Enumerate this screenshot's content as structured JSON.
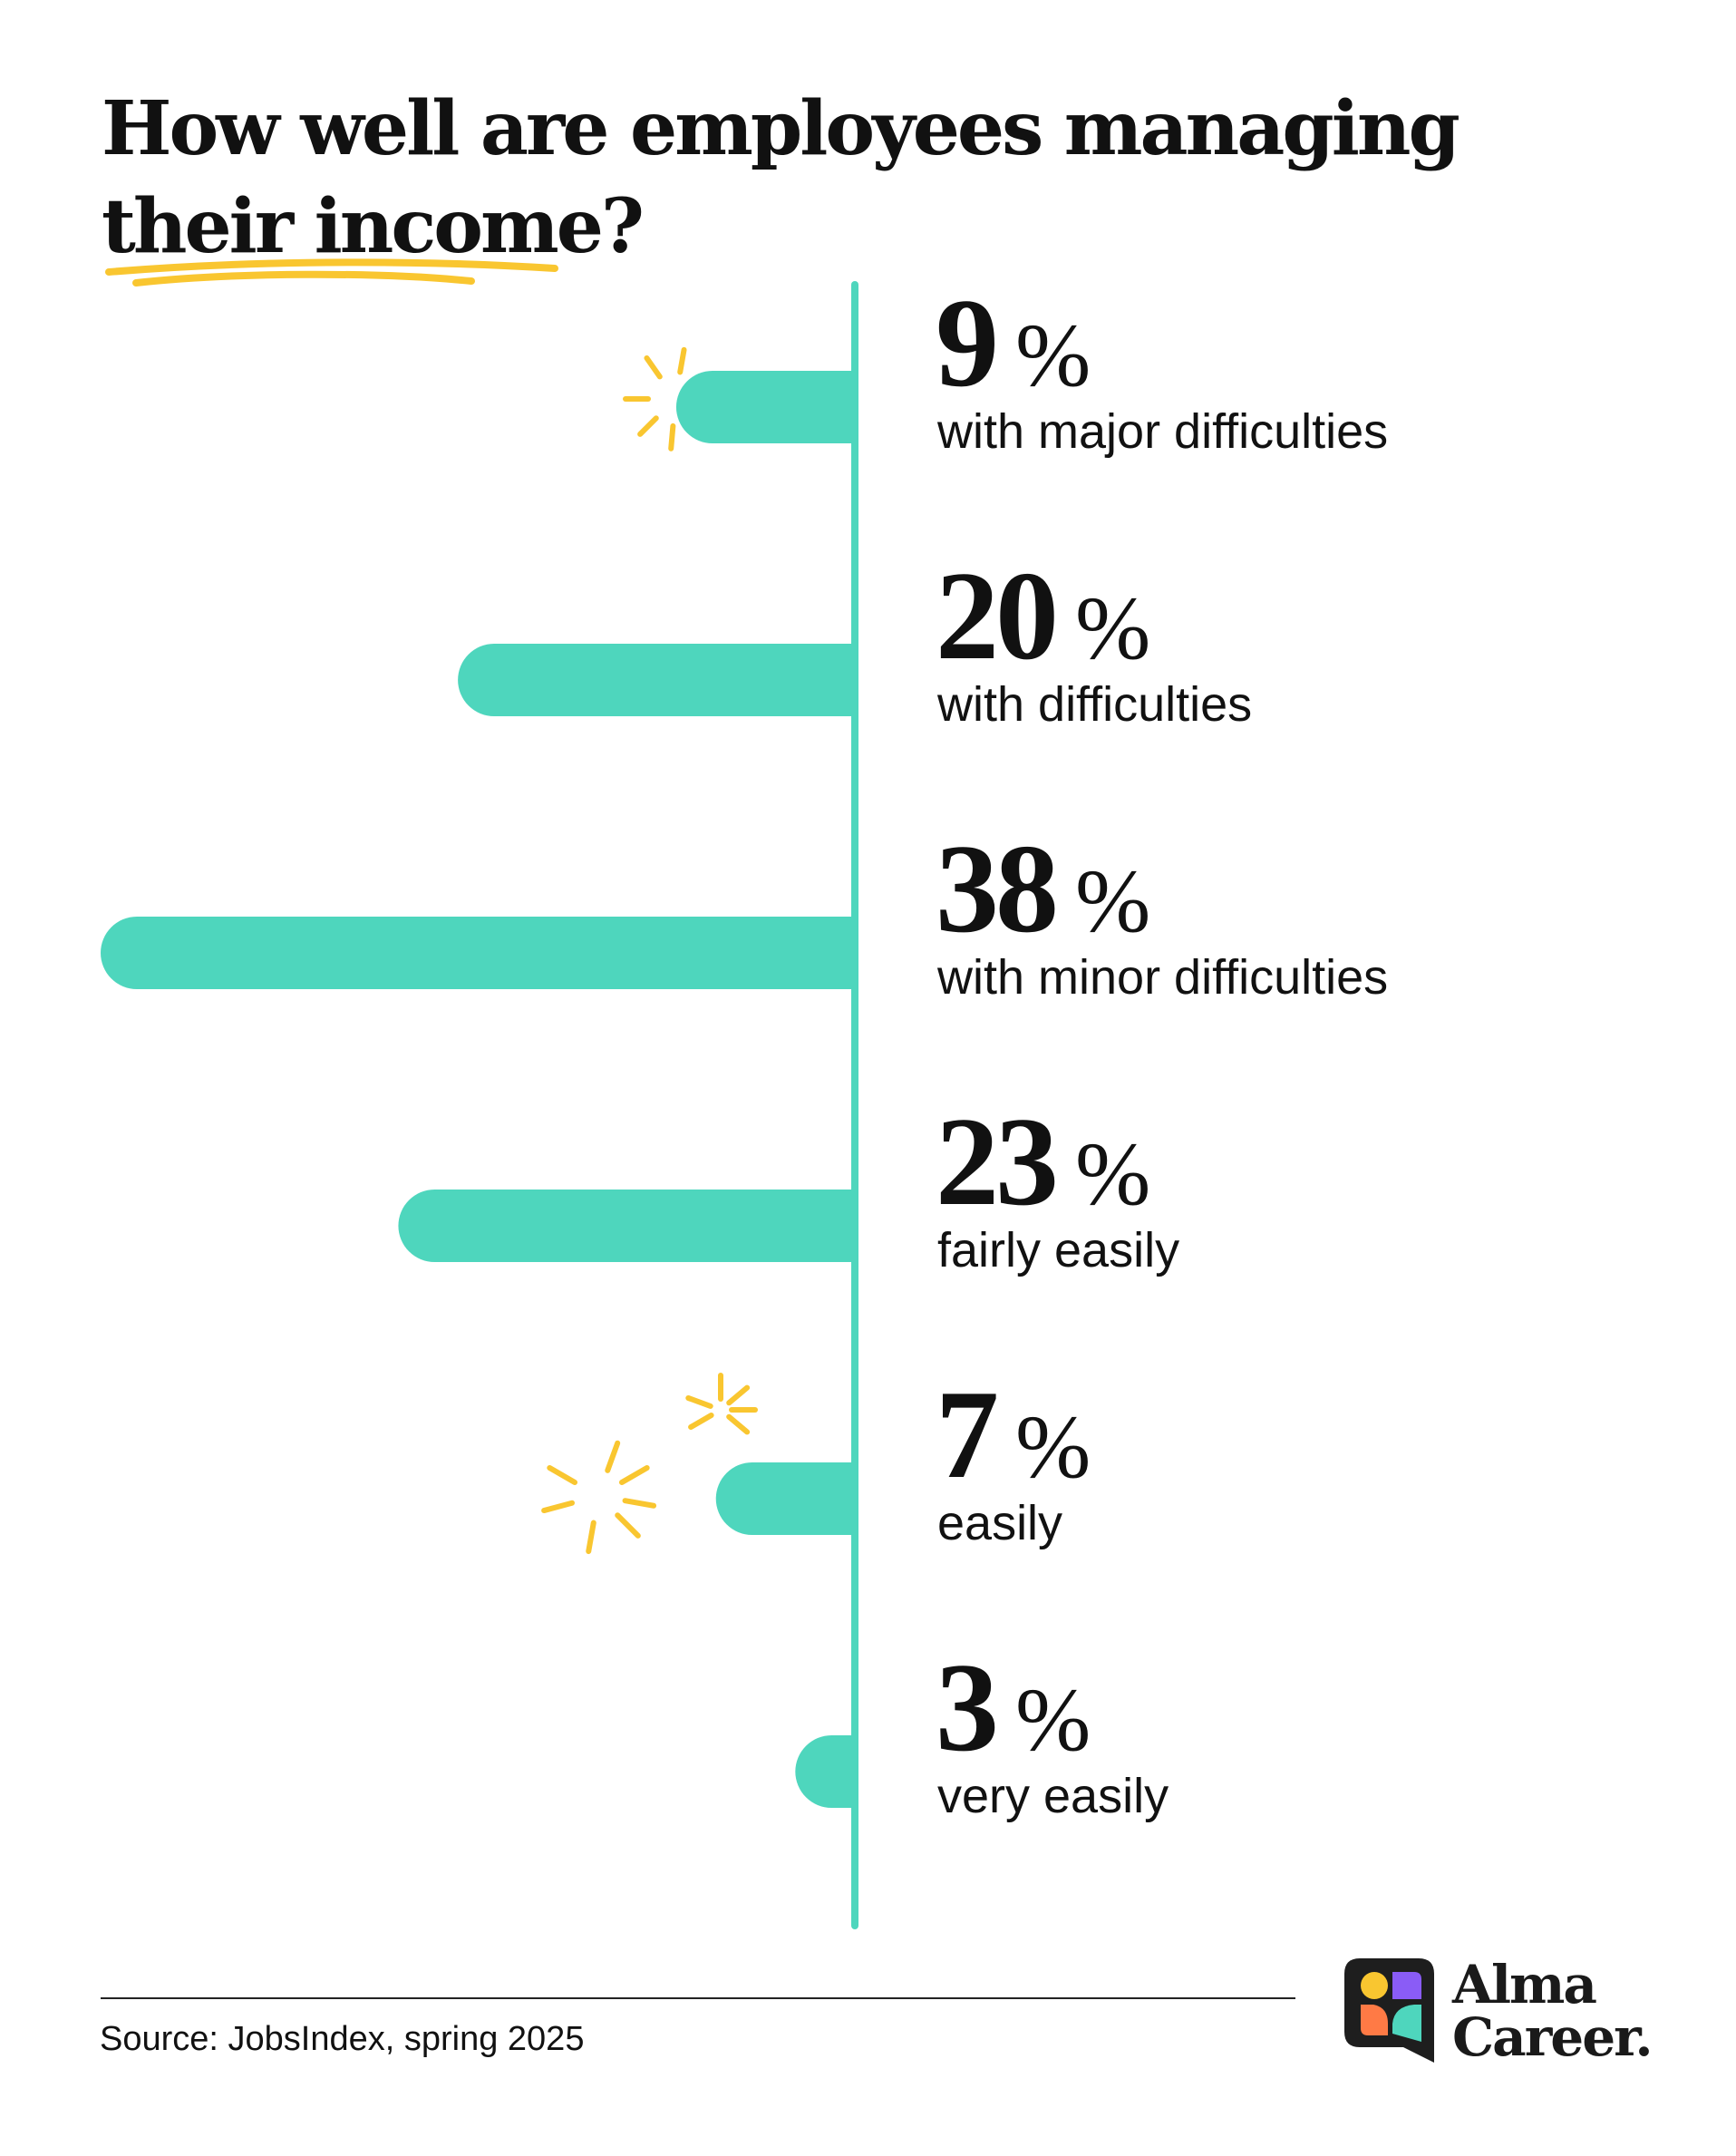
{
  "title_line1": "How well are employees managing",
  "title_line2": "their income?",
  "chart_data": {
    "type": "bar",
    "orientation": "horizontal",
    "categories": [
      "with major difficulties",
      "with difficulties",
      "with minor difficulties",
      "fairly easily",
      "easily",
      "very easily"
    ],
    "values": [
      9,
      20,
      38,
      23,
      7,
      3
    ],
    "value_labels": [
      "9",
      "20",
      "38",
      "23",
      "7",
      "3"
    ],
    "unit": "%",
    "title": "How well are employees managing their income?",
    "xlim": [
      0,
      38
    ],
    "grid": false,
    "colors": {
      "bar": "#4ed6bd",
      "axis": "#4ed6bd",
      "accent": "#f9c630"
    }
  },
  "source": "Source: JobsIndex, spring 2025",
  "brand": {
    "line1": "Alma",
    "line2": "Career.",
    "colors": [
      "#f9c630",
      "#8a5cf6",
      "#ff7a45",
      "#4ed6bd",
      "#1e1e1e"
    ]
  }
}
